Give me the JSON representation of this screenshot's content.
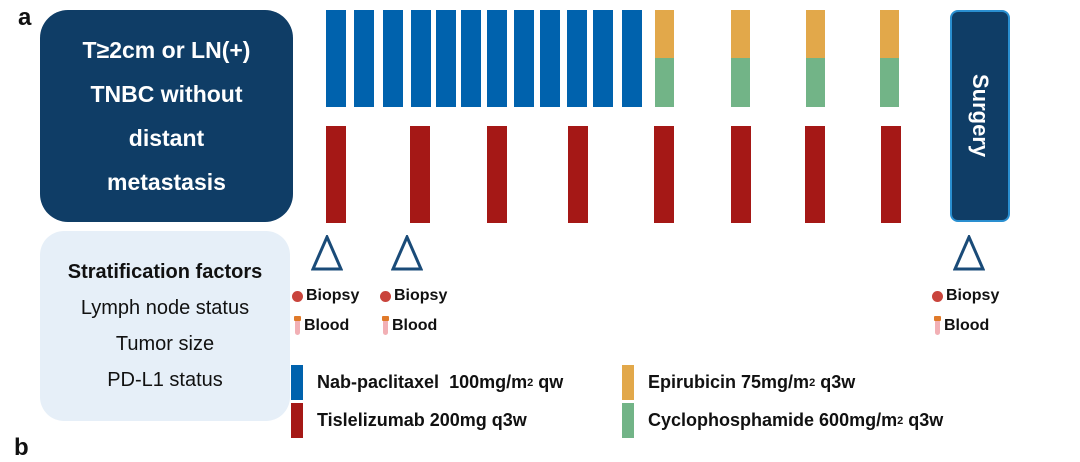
{
  "panel_labels": {
    "a": "a",
    "b": "b"
  },
  "eligibility": {
    "lines": [
      "T≥2cm or LN(+)",
      "TNBC without",
      "distant",
      "metastasis"
    ]
  },
  "stratification": {
    "title": "Stratification factors",
    "items": [
      "Lymph node status",
      "Tumor size",
      "PD-L1 status"
    ]
  },
  "surgery": {
    "label": "Surgery"
  },
  "timepoints": [
    {
      "biopsy": "Biopsy",
      "blood": "Blood"
    },
    {
      "biopsy": "Biopsy",
      "blood": "Blood"
    },
    {
      "biopsy": "Biopsy",
      "blood": "Blood"
    }
  ],
  "schedule": {
    "nab_paclitaxel_doses": 12,
    "epirubicin_cyclophosphamide_doses": 4,
    "tislelizumab_doses": 8
  },
  "legend": [
    {
      "name": "Nab-paclitaxel",
      "dose": "100mg/m",
      "sup": "2",
      "freq": "qw",
      "color": "#0062ad"
    },
    {
      "name": "Tislelizumab",
      "dose": "200mg",
      "sup": "",
      "freq": "q3w",
      "color": "#a51816"
    },
    {
      "name": "Epirubicin",
      "dose": "75mg/m",
      "sup": "2",
      "freq": "q3w",
      "color": "#e2a84a"
    },
    {
      "name": "Cyclophosphamide",
      "dose": "600mg/m",
      "sup": "2",
      "freq": "q3w",
      "color": "#72b487"
    }
  ],
  "colors": {
    "dark_navy": "#0f3d66",
    "light_panel": "#e6eff8"
  }
}
